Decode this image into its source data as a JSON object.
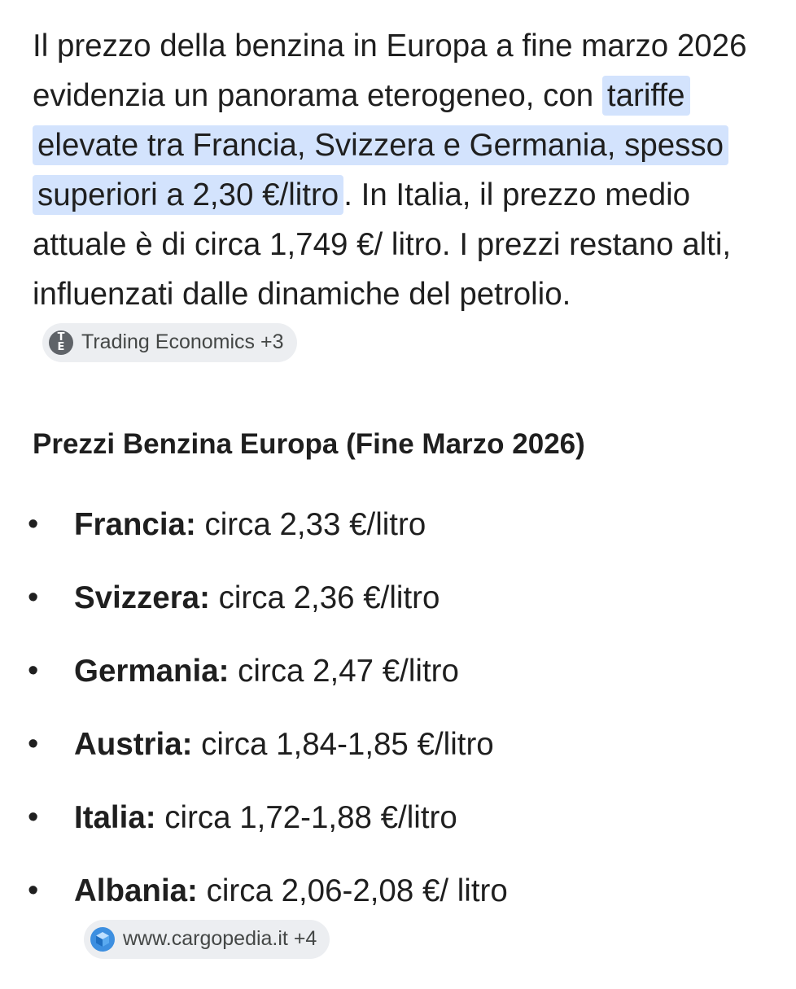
{
  "intro": {
    "before_highlight": "Il prezzo della benzina in Europa a fine marzo 2026 evidenzia un panorama eterogeneo, con ",
    "highlight": "tariffe elevate tra Francia, Svizzera e Germania, spesso superiori a 2,30 €/litro",
    "after_highlight": ". In Italia, il prezzo medio attuale è di circa 1,749 €/ litro. I prezzi restano alti, influenzati dalle dinamiche del petrolio.",
    "source_chip": {
      "icon": "trading-economics-icon",
      "icon_letters": [
        "T",
        "E"
      ],
      "label": "Trading Economics +3"
    }
  },
  "section": {
    "title": "Prezzi Benzina Europa (Fine Marzo 2026)"
  },
  "prices": [
    {
      "country": "Francia:",
      "value": " circa 2,33 €/litro"
    },
    {
      "country": "Svizzera:",
      "value": " circa 2,36 €/litro"
    },
    {
      "country": "Germania:",
      "value": " circa 2,47 €/litro"
    },
    {
      "country": "Austria:",
      "value": " circa 1,84-1,85 €/litro"
    },
    {
      "country": "Italia:",
      "value": " circa 1,72-1,88 €/litro"
    },
    {
      "country": "Albania:",
      "value": " circa 2,06-2,08 €/ litro"
    }
  ],
  "last_source_chip": {
    "icon": "cargopedia-icon",
    "label": "www.cargopedia.it +4"
  },
  "colors": {
    "highlight": "#d3e3fd",
    "chip_bg": "#eceef1",
    "text": "#1f1f1f"
  }
}
